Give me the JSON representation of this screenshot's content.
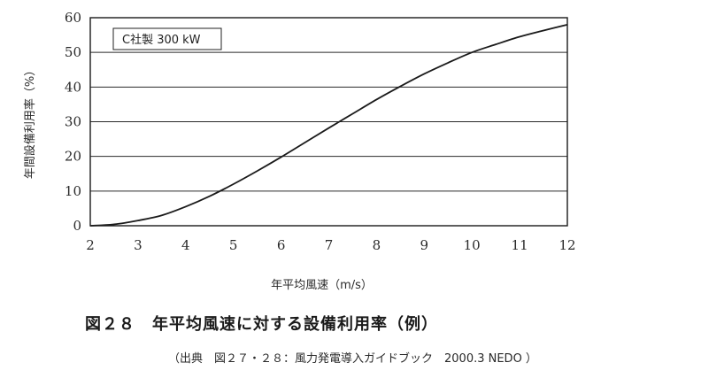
{
  "chart_data": {
    "type": "line",
    "title": "",
    "xlabel": "年平均風速（m/s）",
    "ylabel": "年間設備利用率（%）",
    "xlim": [
      2,
      12
    ],
    "ylim": [
      0,
      60
    ],
    "x_ticks": [
      2,
      3,
      4,
      5,
      6,
      7,
      8,
      9,
      10,
      11,
      12
    ],
    "y_ticks": [
      0,
      10,
      20,
      30,
      40,
      50,
      60
    ],
    "grid": true,
    "legend_position": "top-left",
    "series": [
      {
        "name": "C社製 300 kW",
        "x": [
          2,
          2.5,
          3,
          3.5,
          4,
          4.5,
          5,
          5.5,
          6,
          6.5,
          7,
          7.5,
          8,
          8.5,
          9,
          9.5,
          10,
          10.5,
          11,
          11.5,
          12
        ],
        "y": [
          0,
          0.4,
          1.5,
          3,
          5.5,
          8.5,
          12,
          15.8,
          19.8,
          24,
          28.2,
          32.3,
          36.4,
          40.2,
          43.8,
          47,
          50,
          52.3,
          54.5,
          56.3,
          58
        ],
        "color": "#1a1a1a"
      }
    ]
  },
  "caption": "図２８　年平均風速に対する設備利用率（例）",
  "source": "（出典　図２７・２８：風力発電導入ガイドブック　2000.3 NEDO ）"
}
